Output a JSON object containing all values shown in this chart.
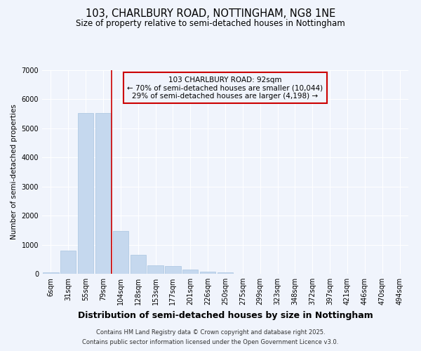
{
  "title": "103, CHARLBURY ROAD, NOTTINGHAM, NG8 1NE",
  "subtitle": "Size of property relative to semi-detached houses in Nottingham",
  "xlabel": "Distribution of semi-detached houses by size in Nottingham",
  "ylabel": "Number of semi-detached properties",
  "categories": [
    "6sqm",
    "31sqm",
    "55sqm",
    "79sqm",
    "104sqm",
    "128sqm",
    "153sqm",
    "177sqm",
    "201sqm",
    "226sqm",
    "250sqm",
    "275sqm",
    "299sqm",
    "323sqm",
    "348sqm",
    "372sqm",
    "397sqm",
    "421sqm",
    "446sqm",
    "470sqm",
    "494sqm"
  ],
  "values": [
    50,
    800,
    5530,
    5520,
    1480,
    660,
    290,
    270,
    140,
    80,
    50,
    10,
    3,
    1,
    0,
    0,
    0,
    0,
    0,
    0,
    0
  ],
  "bar_color": "#c5d8ee",
  "bar_edge_color": "#a8c4e0",
  "bg_color": "#f0f4fc",
  "grid_color": "#ffffff",
  "vline_x": 3.5,
  "vline_color": "#cc0000",
  "ylim": [
    0,
    7000
  ],
  "annotation_title": "103 CHARLBURY ROAD: 92sqm",
  "annotation_line1": "← 70% of semi-detached houses are smaller (10,044)",
  "annotation_line2": "29% of semi-detached houses are larger (4,198) →",
  "annotation_box_color": "#cc0000",
  "footer_line1": "Contains HM Land Registry data © Crown copyright and database right 2025.",
  "footer_line2": "Contains public sector information licensed under the Open Government Licence v3.0.",
  "title_fontsize": 10.5,
  "subtitle_fontsize": 8.5,
  "xlabel_fontsize": 9,
  "ylabel_fontsize": 7.5,
  "tick_fontsize": 7,
  "annotation_fontsize": 7.5,
  "footer_fontsize": 6.0
}
